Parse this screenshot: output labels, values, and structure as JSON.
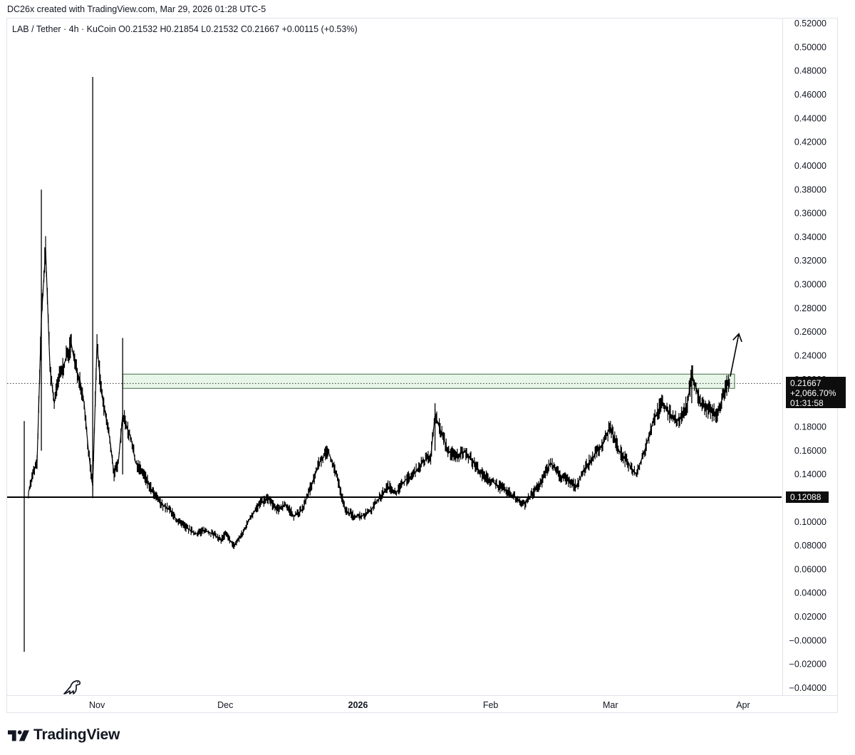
{
  "caption": "DC26x created with TradingView.com, Mar 29, 2026 01:28 UTC-5",
  "legend": "LAB / Tether · 4h · KuCoin  O0.21532  H0.21854  L0.21532  C0.21667  +0.00115 (+0.53%)",
  "price_tag": {
    "price": "0.21667",
    "change": "+2,066.70%",
    "countdown": "01:31:58"
  },
  "level_tag": "0.12088",
  "brand": "TradingView",
  "icons": [
    "tradingview-logo-icon",
    "dinosaur-icon",
    "arrow-up-icon"
  ],
  "colors": {
    "candles": "#000000",
    "zone_fill": "#e8f5e9",
    "zone_border": "#6b8e6b",
    "tag_bg": "#0d0d0d"
  },
  "chart_data": {
    "type": "line",
    "title": "",
    "xlabel": "",
    "ylabel": "",
    "ylim": [
      -0.04,
      0.52
    ],
    "y_ticks": [
      "0.52000",
      "0.50000",
      "0.48000",
      "0.46000",
      "0.44000",
      "0.42000",
      "0.40000",
      "0.38000",
      "0.36000",
      "0.34000",
      "0.32000",
      "0.30000",
      "0.28000",
      "0.26000",
      "0.24000",
      "0.22000",
      "0.20000",
      "0.18000",
      "0.16000",
      "0.14000",
      "0.12000",
      "0.10000",
      "0.08000",
      "0.06000",
      "0.04000",
      "0.02000",
      "−0.00000",
      "−0.02000",
      "−0.04000"
    ],
    "x_ticks": [
      {
        "label": "Nov",
        "date": "2025-11-01"
      },
      {
        "label": "Dec",
        "date": "2025-12-01"
      },
      {
        "label": "2026",
        "date": "2026-01-01",
        "bold": true
      },
      {
        "label": "Feb",
        "date": "2026-02-01"
      },
      {
        "label": "Mar",
        "date": "2026-03-01"
      },
      {
        "label": "Apr",
        "date": "2026-04-01"
      }
    ],
    "x_range": [
      "2025-10-11",
      "2026-04-10"
    ],
    "series": [
      {
        "points": [
          [
            "2025-10-16",
            0.125
          ],
          [
            "2025-10-17",
            0.14
          ],
          [
            "2025-10-18",
            0.15
          ],
          [
            "2025-10-19",
            0.27
          ],
          [
            "2025-10-20",
            0.33
          ],
          [
            "2025-10-21",
            0.23
          ],
          [
            "2025-10-22",
            0.2
          ],
          [
            "2025-10-23",
            0.22
          ],
          [
            "2025-10-24",
            0.23
          ],
          [
            "2025-10-25",
            0.24
          ],
          [
            "2025-10-26",
            0.25
          ],
          [
            "2025-10-27",
            0.23
          ],
          [
            "2025-10-28",
            0.22
          ],
          [
            "2025-10-29",
            0.2
          ],
          [
            "2025-10-30",
            0.16
          ],
          [
            "2025-10-31",
            0.13
          ],
          [
            "2025-11-01",
            0.25
          ],
          [
            "2025-11-02",
            0.21
          ],
          [
            "2025-11-03",
            0.19
          ],
          [
            "2025-11-04",
            0.17
          ],
          [
            "2025-11-05",
            0.14
          ],
          [
            "2025-11-06",
            0.15
          ],
          [
            "2025-11-07",
            0.19
          ],
          [
            "2025-11-08",
            0.18
          ],
          [
            "2025-11-09",
            0.17
          ],
          [
            "2025-11-10",
            0.15
          ],
          [
            "2025-11-12",
            0.14
          ],
          [
            "2025-11-14",
            0.125
          ],
          [
            "2025-11-16",
            0.115
          ],
          [
            "2025-11-18",
            0.11
          ],
          [
            "2025-11-20",
            0.1
          ],
          [
            "2025-11-22",
            0.095
          ],
          [
            "2025-11-24",
            0.09
          ],
          [
            "2025-11-26",
            0.093
          ],
          [
            "2025-11-28",
            0.09
          ],
          [
            "2025-11-30",
            0.085
          ],
          [
            "2025-12-01",
            0.09
          ],
          [
            "2025-12-03",
            0.08
          ],
          [
            "2025-12-05",
            0.09
          ],
          [
            "2025-12-07",
            0.105
          ],
          [
            "2025-12-09",
            0.115
          ],
          [
            "2025-12-11",
            0.12
          ],
          [
            "2025-12-13",
            0.11
          ],
          [
            "2025-12-15",
            0.115
          ],
          [
            "2025-12-17",
            0.105
          ],
          [
            "2025-12-19",
            0.11
          ],
          [
            "2025-12-21",
            0.13
          ],
          [
            "2025-12-23",
            0.15
          ],
          [
            "2025-12-25",
            0.16
          ],
          [
            "2025-12-27",
            0.14
          ],
          [
            "2025-12-29",
            0.11
          ],
          [
            "2025-12-31",
            0.105
          ],
          [
            "2026-01-02",
            0.105
          ],
          [
            "2026-01-04",
            0.11
          ],
          [
            "2026-01-06",
            0.12
          ],
          [
            "2026-01-08",
            0.13
          ],
          [
            "2026-01-10",
            0.125
          ],
          [
            "2026-01-12",
            0.135
          ],
          [
            "2026-01-14",
            0.14
          ],
          [
            "2026-01-16",
            0.15
          ],
          [
            "2026-01-18",
            0.155
          ],
          [
            "2026-01-19",
            0.19
          ],
          [
            "2026-01-20",
            0.18
          ],
          [
            "2026-01-22",
            0.16
          ],
          [
            "2026-01-24",
            0.155
          ],
          [
            "2026-01-26",
            0.16
          ],
          [
            "2026-01-28",
            0.15
          ],
          [
            "2026-01-30",
            0.14
          ],
          [
            "2026-02-01",
            0.135
          ],
          [
            "2026-02-03",
            0.13
          ],
          [
            "2026-02-05",
            0.125
          ],
          [
            "2026-02-07",
            0.12
          ],
          [
            "2026-02-09",
            0.115
          ],
          [
            "2026-02-11",
            0.125
          ],
          [
            "2026-02-13",
            0.135
          ],
          [
            "2026-02-15",
            0.15
          ],
          [
            "2026-02-17",
            0.14
          ],
          [
            "2026-02-19",
            0.135
          ],
          [
            "2026-02-21",
            0.13
          ],
          [
            "2026-02-23",
            0.145
          ],
          [
            "2026-02-25",
            0.155
          ],
          [
            "2026-02-27",
            0.165
          ],
          [
            "2026-03-01",
            0.18
          ],
          [
            "2026-03-03",
            0.16
          ],
          [
            "2026-03-05",
            0.15
          ],
          [
            "2026-03-07",
            0.14
          ],
          [
            "2026-03-09",
            0.16
          ],
          [
            "2026-03-11",
            0.185
          ],
          [
            "2026-03-13",
            0.2
          ],
          [
            "2026-03-15",
            0.19
          ],
          [
            "2026-03-17",
            0.185
          ],
          [
            "2026-03-19",
            0.2
          ],
          [
            "2026-03-20",
            0.225
          ],
          [
            "2026-03-22",
            0.2
          ],
          [
            "2026-03-24",
            0.195
          ],
          [
            "2026-03-26",
            0.19
          ],
          [
            "2026-03-28",
            0.215
          ],
          [
            "2026-03-29",
            0.21667
          ]
        ],
        "extreme_wicks": [
          {
            "date": "2025-10-15",
            "high": 0.185,
            "low": -0.0095
          },
          {
            "date": "2025-10-19",
            "high": 0.38,
            "low": 0.16
          },
          {
            "date": "2025-10-31",
            "high": 0.475,
            "low": 0.12
          },
          {
            "date": "2025-11-07",
            "high": 0.255,
            "low": 0.14
          },
          {
            "date": "2026-01-19",
            "high": 0.2,
            "low": 0.16
          },
          {
            "date": "2026-03-20",
            "high": 0.232,
            "low": 0.2
          }
        ]
      }
    ],
    "horizontal_levels": [
      {
        "value": 0.12088,
        "style": "solid"
      },
      {
        "value": 0.21667,
        "style": "dotted"
      }
    ],
    "zones": [
      {
        "from": "2025-11-07",
        "to": "2026-03-30",
        "low": 0.2125,
        "high": 0.2245
      }
    ],
    "annotations": [
      {
        "type": "arrow",
        "from": [
          "2026-03-29",
          0.2225
        ],
        "to": [
          "2026-03-31",
          0.2585
        ]
      }
    ],
    "grid": false,
    "legend_position": "top-left"
  }
}
